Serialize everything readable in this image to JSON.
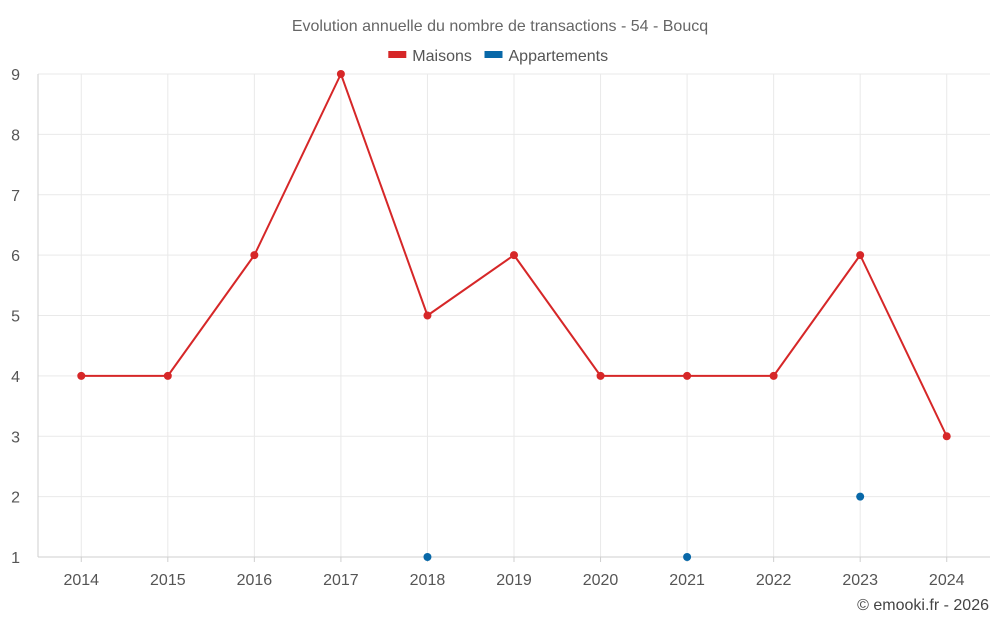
{
  "chart_data": {
    "type": "line",
    "title": "Evolution annuelle du nombre de transactions - 54 - Boucq",
    "categories": [
      "2014",
      "2015",
      "2016",
      "2017",
      "2018",
      "2019",
      "2020",
      "2021",
      "2022",
      "2023",
      "2024"
    ],
    "series": [
      {
        "name": "Maisons",
        "color": "#d62728",
        "values": [
          4,
          4,
          6,
          9,
          5,
          6,
          4,
          4,
          4,
          6,
          3
        ]
      },
      {
        "name": "Appartements",
        "color": "#0868a8",
        "values": [
          null,
          null,
          null,
          null,
          1,
          null,
          null,
          1,
          null,
          2,
          null
        ]
      }
    ],
    "ylim": [
      1,
      9
    ],
    "yticks": [
      1,
      2,
      3,
      4,
      5,
      6,
      7,
      8,
      9
    ],
    "grid": true,
    "legend": "top-center",
    "xlabel": "",
    "ylabel": ""
  },
  "credit": "© emooki.fr - 2026"
}
